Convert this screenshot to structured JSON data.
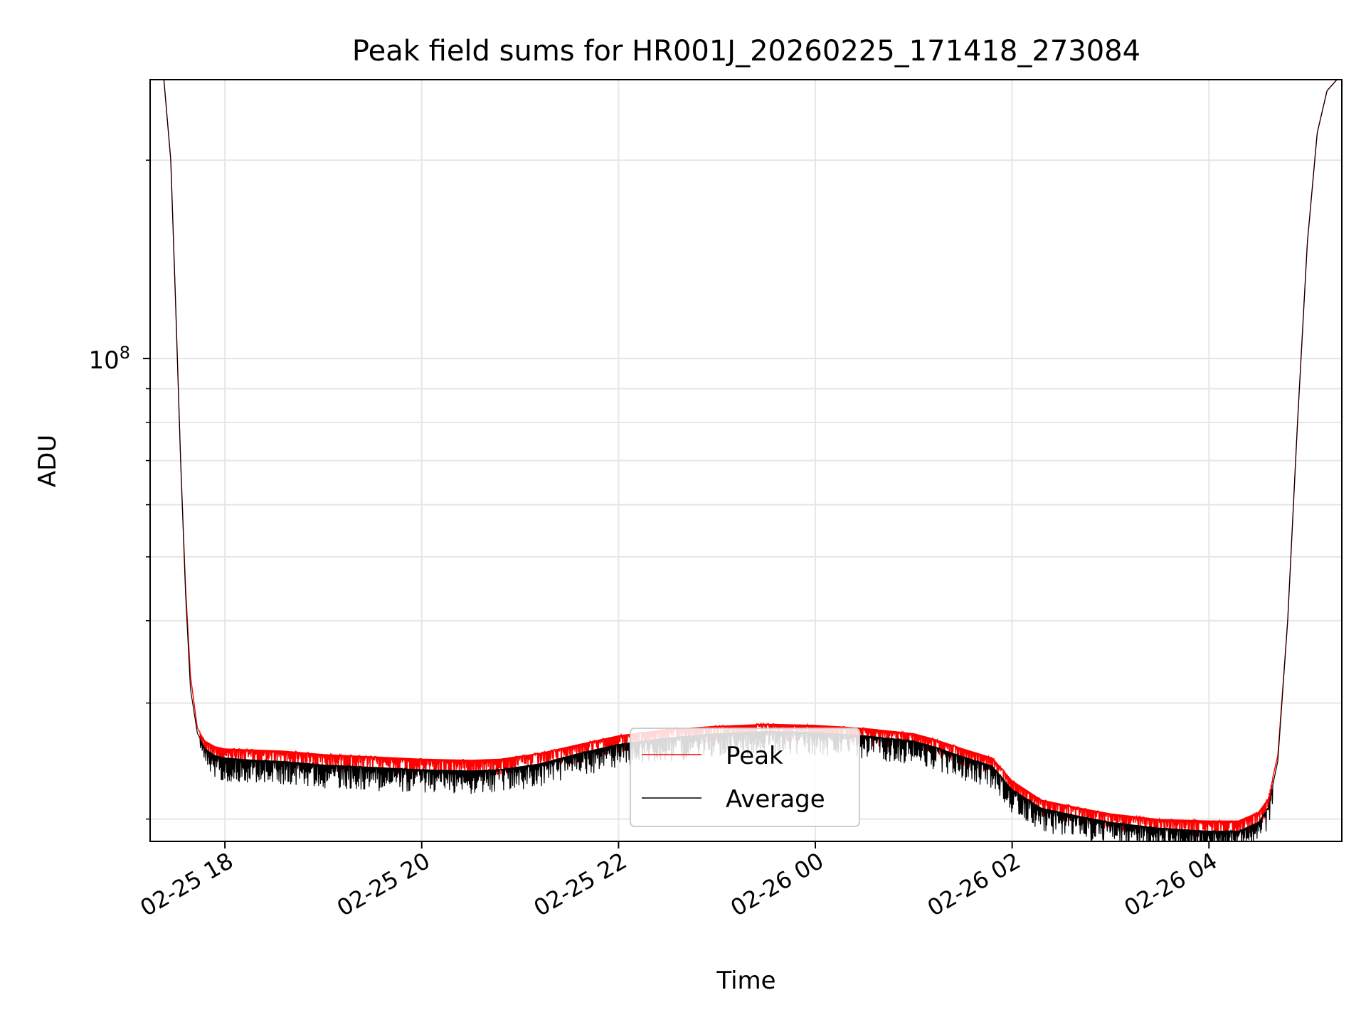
{
  "chart_data": {
    "type": "line",
    "title": "Peak field sums for HR001J_20260225_171418_273084",
    "xlabel": "Time",
    "ylabel": "ADU",
    "yscale": "log",
    "x_unit": "hours since 2026-02-25 00:00",
    "xlim": [
      17.24,
      29.35
    ],
    "ylim": [
      18500000,
      265000000
    ],
    "x_ticks": [
      {
        "value": 18,
        "label": "02-25 18"
      },
      {
        "value": 20,
        "label": "02-25 20"
      },
      {
        "value": 22,
        "label": "02-25 22"
      },
      {
        "value": 24,
        "label": "02-26 00"
      },
      {
        "value": 26,
        "label": "02-26 02"
      },
      {
        "value": 28,
        "label": "02-26 04"
      }
    ],
    "y_major_ticks": [
      {
        "value": 100000000,
        "base": "10",
        "exponent": "8"
      }
    ],
    "y_minor_ticks": [
      20000000,
      30000000,
      40000000,
      50000000,
      60000000,
      70000000,
      80000000,
      90000000,
      200000000
    ],
    "grid": true,
    "legend": {
      "position": "bottom-center"
    },
    "series": [
      {
        "name": "Peak",
        "color": "#ff0000",
        "noise_amplitude": 0.06,
        "x": [
          17.38,
          17.45,
          17.5,
          17.55,
          17.6,
          17.65,
          17.72,
          17.8,
          17.9,
          18.0,
          18.3,
          18.6,
          19.0,
          19.5,
          20.0,
          20.5,
          20.8,
          21.2,
          21.6,
          22.0,
          22.5,
          23.0,
          23.5,
          24.0,
          24.5,
          25.0,
          25.2,
          25.5,
          25.8,
          26.0,
          26.3,
          26.7,
          27.0,
          27.5,
          28.0,
          28.3,
          28.5,
          28.6,
          28.7,
          28.8,
          28.9,
          29.0,
          29.1,
          29.2,
          29.3
        ],
        "y": [
          265000000,
          200000000,
          120000000,
          70000000,
          45000000,
          33000000,
          27500000,
          26300000,
          25800000,
          25600000,
          25500000,
          25400000,
          25100000,
          24900000,
          24700000,
          24600000,
          24700000,
          25200000,
          26000000,
          26800000,
          27400000,
          27700000,
          27900000,
          27800000,
          27500000,
          27000000,
          26500000,
          25600000,
          24800000,
          22900000,
          21400000,
          20800000,
          20400000,
          20000000,
          19900000,
          19900000,
          20500000,
          21500000,
          25000000,
          40000000,
          80000000,
          150000000,
          220000000,
          255000000,
          265000000
        ]
      },
      {
        "name": "Average",
        "color": "#000000",
        "noise_amplitude": 0.08,
        "x": [
          17.38,
          17.45,
          17.5,
          17.55,
          17.6,
          17.65,
          17.72,
          17.8,
          17.9,
          18.0,
          18.3,
          18.6,
          19.0,
          19.5,
          20.0,
          20.5,
          20.8,
          21.2,
          21.6,
          22.0,
          22.5,
          23.0,
          23.5,
          24.0,
          24.5,
          25.0,
          25.2,
          25.5,
          25.8,
          26.0,
          26.3,
          26.7,
          27.0,
          27.5,
          28.0,
          28.3,
          28.5,
          28.6,
          28.7,
          28.8,
          28.9,
          29.0,
          29.1,
          29.2,
          29.3
        ],
        "y": [
          265000000,
          200000000,
          120000000,
          70000000,
          44000000,
          31500000,
          27000000,
          25600000,
          25000000,
          24800000,
          24600000,
          24500000,
          24200000,
          24000000,
          23800000,
          23700000,
          23800000,
          24300000,
          25200000,
          26000000,
          26600000,
          27000000,
          27200000,
          27100000,
          26800000,
          26300000,
          25800000,
          24900000,
          24100000,
          22200000,
          20800000,
          20200000,
          19800000,
          19400000,
          19200000,
          19200000,
          19800000,
          20800000,
          24500000,
          40000000,
          80000000,
          150000000,
          220000000,
          255000000,
          265000000
        ]
      }
    ]
  }
}
